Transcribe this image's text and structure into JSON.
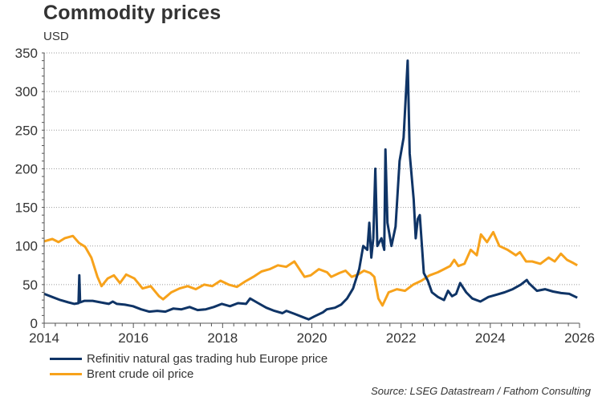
{
  "chart_data": {
    "type": "line",
    "title": "Commodity prices",
    "ylabel": "USD",
    "xlabel": "",
    "xlim": [
      2014,
      2026
    ],
    "ylim": [
      0,
      350
    ],
    "x_ticks": [
      2014,
      2016,
      2018,
      2020,
      2022,
      2024,
      2026
    ],
    "y_ticks": [
      0,
      50,
      100,
      150,
      200,
      250,
      300,
      350
    ],
    "grid": "horizontal dotted",
    "legend_position": "bottom-left",
    "series": [
      {
        "name": "Refinitiv natural gas trading hub Europe price",
        "color": "#0f3466",
        "points": [
          [
            2014.0,
            38
          ],
          [
            2014.2,
            34
          ],
          [
            2014.4,
            30
          ],
          [
            2014.6,
            27
          ],
          [
            2014.75,
            25
          ],
          [
            2014.85,
            26
          ],
          [
            2014.87,
            62
          ],
          [
            2014.89,
            27
          ],
          [
            2015.0,
            29
          ],
          [
            2015.2,
            29
          ],
          [
            2015.4,
            27
          ],
          [
            2015.6,
            25
          ],
          [
            2015.7,
            28
          ],
          [
            2015.8,
            25
          ],
          [
            2016.0,
            24
          ],
          [
            2016.2,
            22
          ],
          [
            2016.4,
            18
          ],
          [
            2016.6,
            15
          ],
          [
            2016.8,
            16
          ],
          [
            2017.0,
            15
          ],
          [
            2017.2,
            19
          ],
          [
            2017.4,
            18
          ],
          [
            2017.6,
            21
          ],
          [
            2017.8,
            17
          ],
          [
            2018.0,
            18
          ],
          [
            2018.2,
            21
          ],
          [
            2018.4,
            25
          ],
          [
            2018.6,
            22
          ],
          [
            2018.8,
            26
          ],
          [
            2019.0,
            25
          ],
          [
            2019.1,
            32
          ],
          [
            2019.3,
            26
          ],
          [
            2019.5,
            20
          ],
          [
            2019.7,
            16
          ],
          [
            2019.9,
            13
          ],
          [
            2020.0,
            16
          ],
          [
            2020.2,
            12
          ],
          [
            2020.4,
            8
          ],
          [
            2020.55,
            5
          ],
          [
            2020.7,
            9
          ],
          [
            2020.9,
            14
          ],
          [
            2021.0,
            18
          ],
          [
            2021.2,
            20
          ],
          [
            2021.35,
            24
          ],
          [
            2021.5,
            32
          ],
          [
            2021.65,
            45
          ],
          [
            2021.8,
            70
          ],
          [
            2021.9,
            100
          ],
          [
            2022.0,
            95
          ],
          [
            2022.05,
            130
          ],
          [
            2022.1,
            85
          ],
          [
            2022.15,
            110
          ],
          [
            2022.2,
            200
          ],
          [
            2022.25,
            100
          ],
          [
            2022.35,
            110
          ],
          [
            2022.42,
            95
          ],
          [
            2022.45,
            225
          ],
          [
            2022.5,
            130
          ],
          [
            2022.6,
            100
          ],
          [
            2022.7,
            125
          ],
          [
            2022.8,
            210
          ],
          [
            2022.9,
            240
          ],
          [
            2023.0,
            340
          ],
          [
            2023.05,
            220
          ],
          [
            2023.15,
            160
          ],
          [
            2023.2,
            110
          ],
          [
            2023.25,
            135
          ],
          [
            2023.3,
            140
          ],
          [
            2023.4,
            65
          ],
          [
            2023.5,
            55
          ],
          [
            2023.6,
            40
          ],
          [
            2023.75,
            34
          ],
          [
            2023.9,
            30
          ],
          [
            2024.0,
            42
          ],
          [
            2024.1,
            35
          ],
          [
            2024.2,
            38
          ],
          [
            2024.3,
            52
          ],
          [
            2024.45,
            40
          ],
          [
            2024.6,
            32
          ],
          [
            2024.8,
            28
          ],
          [
            2025.0,
            34
          ],
          [
            2025.2,
            37
          ],
          [
            2025.4,
            40
          ],
          [
            2025.6,
            44
          ],
          [
            2025.8,
            50
          ],
          [
            2025.95,
            56
          ],
          [
            2026.0,
            52
          ],
          [
            2026.2,
            42
          ],
          [
            2026.4,
            44
          ],
          [
            2026.6,
            41
          ],
          [
            2026.8,
            39
          ],
          [
            2027.0,
            38
          ],
          [
            2027.2,
            33
          ]
        ]
      },
      {
        "name": "Brent crude oil price",
        "color": "#f7a21b",
        "points": [
          [
            2014.0,
            106
          ],
          [
            2014.2,
            109
          ],
          [
            2014.35,
            105
          ],
          [
            2014.5,
            110
          ],
          [
            2014.7,
            113
          ],
          [
            2014.85,
            104
          ],
          [
            2015.0,
            99
          ],
          [
            2015.15,
            85
          ],
          [
            2015.3,
            60
          ],
          [
            2015.4,
            48
          ],
          [
            2015.55,
            58
          ],
          [
            2015.7,
            62
          ],
          [
            2015.85,
            52
          ],
          [
            2016.0,
            63
          ],
          [
            2016.2,
            58
          ],
          [
            2016.4,
            45
          ],
          [
            2016.6,
            48
          ],
          [
            2016.8,
            35
          ],
          [
            2016.9,
            31
          ],
          [
            2017.1,
            40
          ],
          [
            2017.3,
            45
          ],
          [
            2017.5,
            48
          ],
          [
            2017.7,
            44
          ],
          [
            2017.9,
            50
          ],
          [
            2018.1,
            48
          ],
          [
            2018.3,
            55
          ],
          [
            2018.5,
            50
          ],
          [
            2018.7,
            47
          ],
          [
            2018.9,
            54
          ],
          [
            2019.1,
            60
          ],
          [
            2019.3,
            67
          ],
          [
            2019.5,
            70
          ],
          [
            2019.7,
            75
          ],
          [
            2019.9,
            73
          ],
          [
            2020.1,
            80
          ],
          [
            2020.35,
            60
          ],
          [
            2020.5,
            62
          ],
          [
            2020.7,
            70
          ],
          [
            2020.9,
            66
          ],
          [
            2021.0,
            60
          ],
          [
            2021.2,
            65
          ],
          [
            2021.35,
            68
          ],
          [
            2021.5,
            60
          ],
          [
            2021.65,
            63
          ],
          [
            2021.8,
            68
          ],
          [
            2021.95,
            65
          ],
          [
            2022.05,
            60
          ],
          [
            2022.15,
            32
          ],
          [
            2022.25,
            23
          ],
          [
            2022.4,
            40
          ],
          [
            2022.6,
            44
          ],
          [
            2022.8,
            42
          ],
          [
            2023.0,
            50
          ],
          [
            2023.2,
            55
          ],
          [
            2023.4,
            62
          ],
          [
            2023.6,
            66
          ],
          [
            2023.75,
            70
          ],
          [
            2023.9,
            74
          ],
          [
            2024.0,
            82
          ],
          [
            2024.1,
            74
          ],
          [
            2024.25,
            77
          ],
          [
            2024.4,
            95
          ],
          [
            2024.55,
            88
          ],
          [
            2024.65,
            115
          ],
          [
            2024.8,
            105
          ],
          [
            2024.95,
            118
          ],
          [
            2025.1,
            100
          ],
          [
            2025.3,
            95
          ],
          [
            2025.5,
            88
          ],
          [
            2025.6,
            92
          ],
          [
            2025.75,
            80
          ],
          [
            2025.9,
            80
          ],
          [
            2026.1,
            77
          ],
          [
            2026.3,
            85
          ],
          [
            2026.45,
            80
          ],
          [
            2026.6,
            90
          ],
          [
            2026.75,
            82
          ],
          [
            2026.9,
            78
          ],
          [
            2027.0,
            75
          ]
        ]
      }
    ]
  },
  "legend": {
    "items": [
      {
        "label": "Refinitiv natural gas trading hub Europe price",
        "color": "#0f3466"
      },
      {
        "label": "Brent crude oil price",
        "color": "#f7a21b"
      }
    ]
  },
  "source": "Source: LSEG Datastream / Fathom Consulting"
}
